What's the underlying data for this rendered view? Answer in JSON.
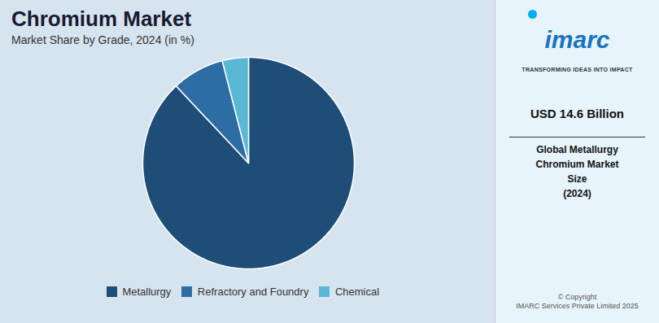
{
  "chart_data": {
    "type": "pie",
    "title": "Chromium Market",
    "subtitle": "Market Share by Grade, 2024 (in %)",
    "categories": [
      "Metallurgy",
      "Refractory and Foundry",
      "Chemical"
    ],
    "values": [
      88.0,
      8.0,
      4.0
    ],
    "colors": [
      "#1e4d78",
      "#2e6da4",
      "#5bb8d4"
    ],
    "legend": "bottom",
    "annotations": [
      "imarc",
      "TRANSFORMING IDEAS INTO IMPACT",
      "USD 14.6 Billion",
      "Global Metallurgy\nChromium Market\nSize\n(2024)",
      "© Copyright\nIMARC Services Private Limited 2025"
    ]
  }
}
